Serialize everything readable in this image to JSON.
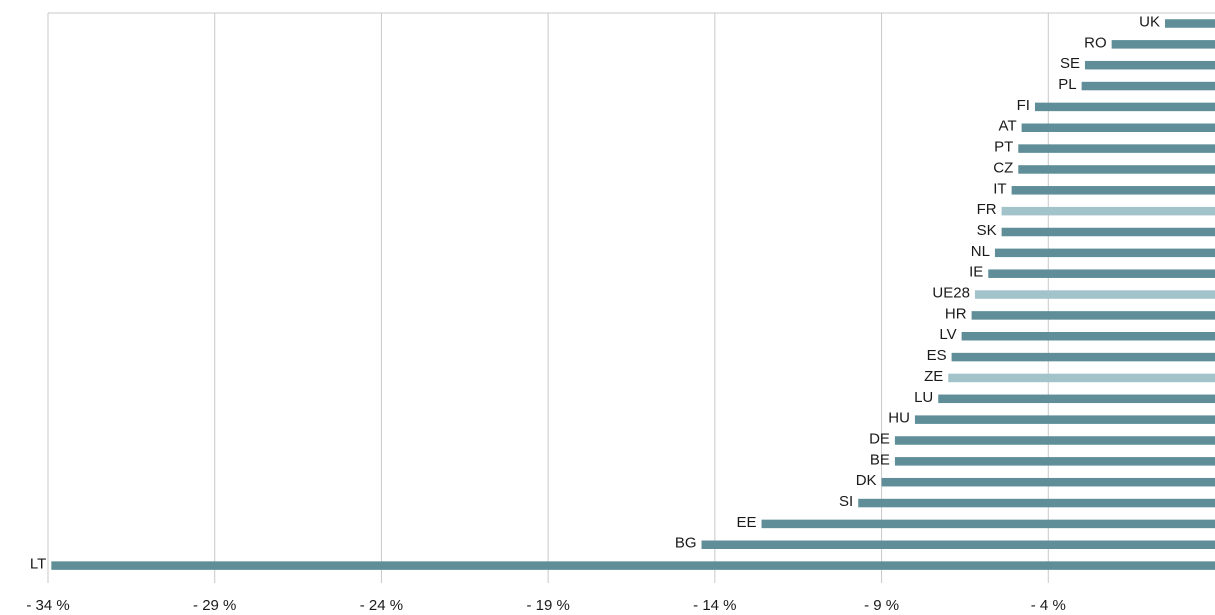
{
  "chart_data": {
    "type": "bar",
    "orientation": "horizontal",
    "title": "",
    "xlabel": "",
    "ylabel": "",
    "xlim": [
      -34,
      1
    ],
    "x_ticks": [
      -34,
      -29,
      -24,
      -19,
      -14,
      -9,
      -4
    ],
    "x_tick_labels": [
      "- 34 %",
      "- 29 %",
      "- 24 %",
      "- 19 %",
      "- 14 %",
      "- 9 %",
      "- 4 %"
    ],
    "grid": "vertical",
    "legend": "none",
    "categories": [
      "UK",
      "RO",
      "SE",
      "PL",
      "FI",
      "AT",
      "PT",
      "CZ",
      "IT",
      "FR",
      "SK",
      "NL",
      "IE",
      "UE28",
      "HR",
      "LV",
      "ES",
      "ZE",
      "LU",
      "HU",
      "DE",
      "BE",
      "DK",
      "SI",
      "EE",
      "BG",
      "LT"
    ],
    "values": [
      -0.5,
      -2.1,
      -2.9,
      -3.0,
      -4.4,
      -4.8,
      -4.9,
      -4.9,
      -5.1,
      -5.4,
      -5.4,
      -5.6,
      -5.8,
      -6.2,
      -6.3,
      -6.6,
      -6.9,
      -7.0,
      -7.3,
      -8.0,
      -8.6,
      -8.6,
      -9.0,
      -9.7,
      -12.6,
      -14.4,
      -33.9
    ],
    "highlighted": [
      "FR",
      "UE28",
      "ZE"
    ],
    "colors": {
      "bar": "#5f8e99",
      "highlight": "#a3c3ca",
      "grid": "#c8c8c8",
      "text": "#1a1a1a"
    }
  }
}
